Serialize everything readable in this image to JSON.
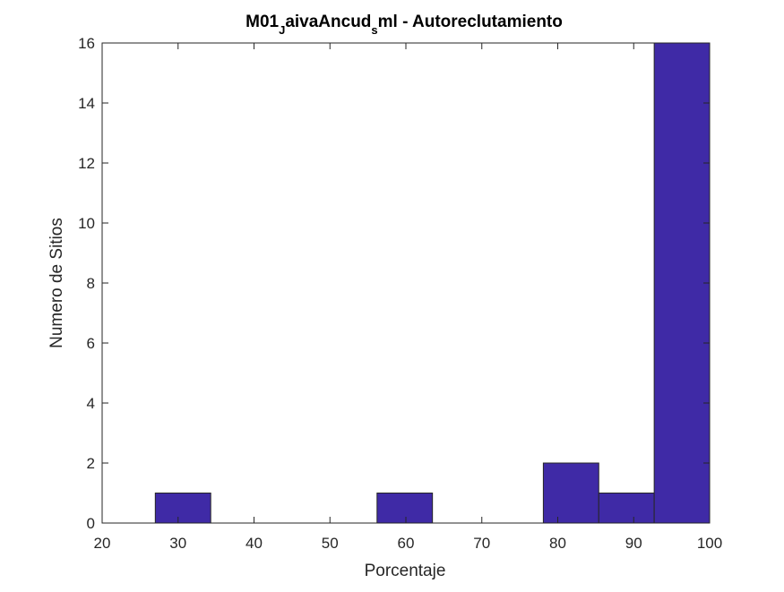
{
  "chart_data": {
    "type": "bar",
    "title_parts": [
      "M01",
      "J",
      "aivaAncud",
      "s",
      "ml - Autoreclutamiento"
    ],
    "xlabel": "Porcentaje",
    "ylabel": "Numero de Sitios",
    "xlim": [
      20,
      100
    ],
    "ylim": [
      0,
      16
    ],
    "xticks": [
      20,
      30,
      40,
      50,
      60,
      70,
      80,
      90,
      100
    ],
    "yticks": [
      0,
      2,
      4,
      6,
      8,
      10,
      12,
      14,
      16
    ],
    "bins": [
      {
        "start": 27.0,
        "end": 34.3,
        "count": 1
      },
      {
        "start": 34.3,
        "end": 41.6,
        "count": 0
      },
      {
        "start": 41.6,
        "end": 48.9,
        "count": 0
      },
      {
        "start": 48.9,
        "end": 56.2,
        "count": 0
      },
      {
        "start": 56.2,
        "end": 63.5,
        "count": 1
      },
      {
        "start": 63.5,
        "end": 70.8,
        "count": 0
      },
      {
        "start": 70.8,
        "end": 78.1,
        "count": 0
      },
      {
        "start": 78.1,
        "end": 85.4,
        "count": 2
      },
      {
        "start": 85.4,
        "end": 92.7,
        "count": 1
      },
      {
        "start": 92.7,
        "end": 100.0,
        "count": 16
      }
    ],
    "bar_color": "#3F2AA6",
    "edge_color": "#262626",
    "grid": false
  }
}
